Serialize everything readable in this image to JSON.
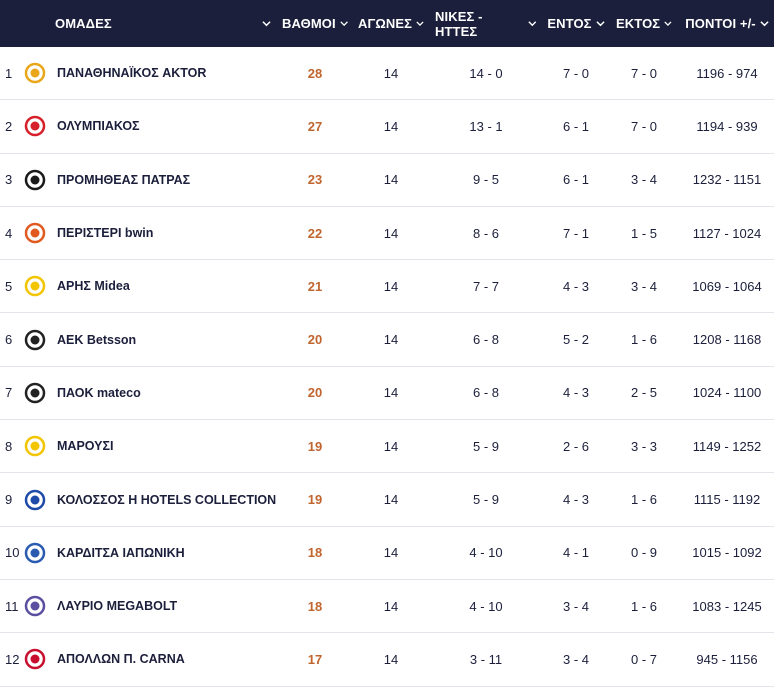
{
  "header": {
    "teams": "ΟΜΑΔΕΣ",
    "points": "ΒΑΘΜΟΙ",
    "games": "ΑΓΩΝΕΣ",
    "wins_losses": "ΝΙΚΕΣ - ΗΤΤΕΣ",
    "home": "ΕΝΤΟΣ",
    "away": "ΕΚΤΟΣ",
    "points_diff": "ΠΟΝΤΟΙ +/-"
  },
  "rows": [
    {
      "pos": "1",
      "name": "ΠΑΝΑΘΗΝΑΪΚΟΣ AKTOR",
      "points": "28",
      "games": "14",
      "wl": "14 - 0",
      "home": "7 - 0",
      "away": "7 - 0",
      "pts": "1196 - 974",
      "logo_icon": "panathinaikos-logo-icon",
      "logo_color": "#e8a618"
    },
    {
      "pos": "2",
      "name": "ΟΛΥΜΠΙΑΚΟΣ",
      "points": "27",
      "games": "14",
      "wl": "13 - 1",
      "home": "6 - 1",
      "away": "7 - 0",
      "pts": "1194 - 939",
      "logo_icon": "olympiacos-logo-icon",
      "logo_color": "#d6202a"
    },
    {
      "pos": "3",
      "name": "ΠΡΟΜΗΘΕΑΣ ΠΑΤΡΑΣ",
      "points": "23",
      "games": "14",
      "wl": "9 - 5",
      "home": "6 - 1",
      "away": "3 - 4",
      "pts": "1232 - 1151",
      "logo_icon": "promitheas-logo-icon",
      "logo_color": "#1a1a1a"
    },
    {
      "pos": "4",
      "name": "ΠΕΡΙΣΤΕΡΙ bwin",
      "points": "22",
      "games": "14",
      "wl": "8 - 6",
      "home": "7 - 1",
      "away": "1 - 5",
      "pts": "1127 - 1024",
      "logo_icon": "peristeri-logo-icon",
      "logo_color": "#e05a1f"
    },
    {
      "pos": "5",
      "name": "ΑΡΗΣ Midea",
      "points": "21",
      "games": "14",
      "wl": "7 - 7",
      "home": "4 - 3",
      "away": "3 - 4",
      "pts": "1069 - 1064",
      "logo_icon": "aris-logo-icon",
      "logo_color": "#f2c500"
    },
    {
      "pos": "6",
      "name": "ΑΕΚ Betsson",
      "points": "20",
      "games": "14",
      "wl": "6 - 8",
      "home": "5 - 2",
      "away": "1 - 6",
      "pts": "1208 - 1168",
      "logo_icon": "aek-logo-icon",
      "logo_color": "#222222"
    },
    {
      "pos": "7",
      "name": "ΠΑΟΚ mateco",
      "points": "20",
      "games": "14",
      "wl": "6 - 8",
      "home": "4 - 3",
      "away": "2 - 5",
      "pts": "1024 - 1100",
      "logo_icon": "paok-logo-icon",
      "logo_color": "#222222"
    },
    {
      "pos": "8",
      "name": "ΜΑΡΟΥΣΙ",
      "points": "19",
      "games": "14",
      "wl": "5 - 9",
      "home": "2 - 6",
      "away": "3 - 3",
      "pts": "1149 - 1252",
      "logo_icon": "maroussi-logo-icon",
      "logo_color": "#f2c500"
    },
    {
      "pos": "9",
      "name": "ΚΟΛΟΣΣΟΣ H HOTELS COLLECTION",
      "points": "19",
      "games": "14",
      "wl": "5 - 9",
      "home": "4 - 3",
      "away": "1 - 6",
      "pts": "1115 - 1192",
      "logo_icon": "kolossos-logo-icon",
      "logo_color": "#1e4aa8"
    },
    {
      "pos": "10",
      "name": "ΚΑΡΔΙΤΣΑ ΙΑΠΩΝΙΚΗ",
      "points": "18",
      "games": "14",
      "wl": "4 - 10",
      "home": "4 - 1",
      "away": "0 - 9",
      "pts": "1015 - 1092",
      "logo_icon": "karditsa-logo-icon",
      "logo_color": "#2a5bb0"
    },
    {
      "pos": "11",
      "name": "ΛΑΥΡΙΟ MEGABOLT",
      "points": "18",
      "games": "14",
      "wl": "4 - 10",
      "home": "3 - 4",
      "away": "1 - 6",
      "pts": "1083 - 1245",
      "logo_icon": "lavrio-logo-icon",
      "logo_color": "#5a4fa0"
    },
    {
      "pos": "12",
      "name": "ΑΠΟΛΛΩΝ Π. CARNA",
      "points": "17",
      "games": "14",
      "wl": "3 - 11",
      "home": "3 - 4",
      "away": "0 - 7",
      "pts": "945 - 1156",
      "logo_icon": "apollon-logo-icon",
      "logo_color": "#c8102e"
    }
  ]
}
